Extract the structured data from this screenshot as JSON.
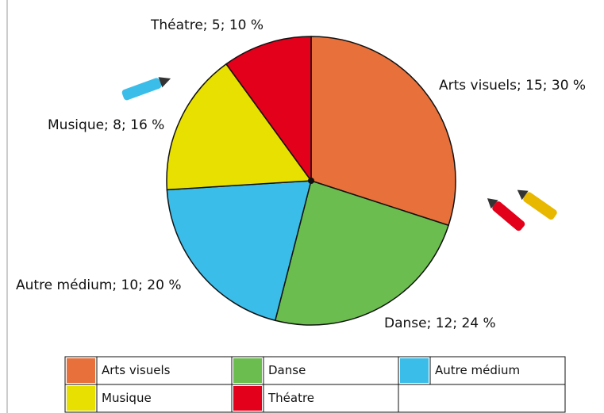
{
  "chart_data": {
    "type": "pie",
    "categories": [
      "Arts visuels",
      "Danse",
      "Autre médium",
      "Musique",
      "Théatre"
    ],
    "values": [
      15,
      12,
      10,
      8,
      5
    ],
    "value_labels": [
      "Arts visuels; 15; 30 %",
      "Danse; 12; 24 %",
      "Autre médium; 10; 20 %",
      "Musique; 8; 16 %",
      "Théatre; 5; 10 %"
    ],
    "colors": [
      "#e8703a",
      "#6abd4e",
      "#3bbde9",
      "#e8e000",
      "#e2001a"
    ],
    "legend": "bottom"
  }
}
